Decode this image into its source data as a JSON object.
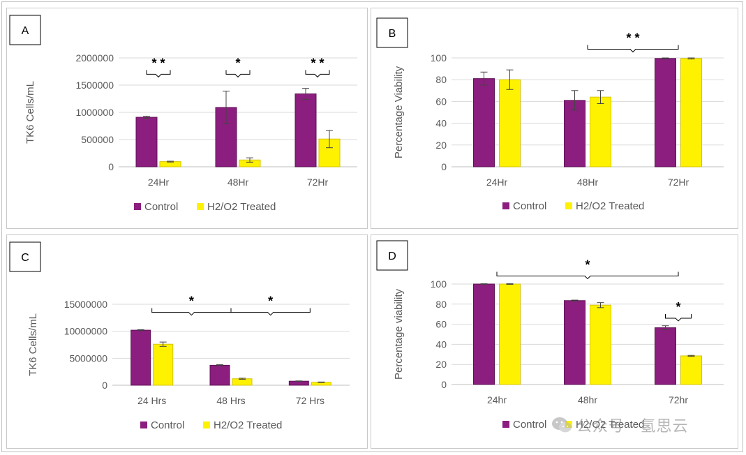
{
  "colors": {
    "control": "#8B1E7E",
    "treated": "#FFF200",
    "treated_stroke": "#D6C400",
    "grid": "#d9d9d9",
    "axis": "#bfbfbf"
  },
  "legend": {
    "control": "Control",
    "treated": "H2/O2 Treated"
  },
  "watermark": {
    "text": "公众号 · 氢思云"
  },
  "chart_data": [
    {
      "panel": "A",
      "type": "bar",
      "ylabel": "TK6 Cells/mL",
      "categories": [
        "24Hr",
        "48Hr",
        "72Hr"
      ],
      "ylim": [
        0,
        2000000
      ],
      "yticks": [
        0,
        500000,
        1000000,
        1500000,
        2000000
      ],
      "ytick_labels": [
        "0",
        "500000",
        "1000000",
        "1500000",
        "2000000"
      ],
      "series": [
        {
          "name": "Control",
          "values": [
            910000,
            1090000,
            1340000
          ],
          "errors": [
            20000,
            300000,
            100000
          ]
        },
        {
          "name": "H2/O2 Treated",
          "values": [
            95000,
            125000,
            510000
          ],
          "errors": [
            8000,
            40000,
            160000
          ]
        }
      ],
      "annotations": [
        {
          "type": "pair",
          "category": 0,
          "text": "* *",
          "y": 1700000
        },
        {
          "type": "pair",
          "category": 1,
          "text": "*",
          "y": 1700000
        },
        {
          "type": "pair",
          "category": 2,
          "text": "* *",
          "y": 1700000
        }
      ]
    },
    {
      "panel": "B",
      "type": "bar",
      "ylabel": "Percentage Viability",
      "categories": [
        "24Hr",
        "48Hr",
        "72Hr"
      ],
      "ylim": [
        0,
        100
      ],
      "yticks": [
        0,
        20,
        40,
        60,
        80,
        100
      ],
      "ytick_labels": [
        "0",
        "20",
        "40",
        "60",
        "80",
        "100"
      ],
      "series": [
        {
          "name": "Control",
          "values": [
            81,
            61,
            99.5
          ],
          "errors": [
            6,
            9,
            0.5
          ]
        },
        {
          "name": "H2/O2 Treated",
          "values": [
            80,
            64,
            99.5
          ],
          "errors": [
            9,
            6,
            0.5
          ]
        }
      ],
      "annotations": [
        {
          "type": "span",
          "from": 1,
          "to": 2,
          "text": "* *",
          "y": 108
        }
      ]
    },
    {
      "panel": "C",
      "type": "bar",
      "ylabel": "TK6  Cells/mL",
      "categories": [
        "24 Hrs",
        "48 Hrs",
        "72 Hrs"
      ],
      "ylim": [
        0,
        15000000
      ],
      "yticks": [
        0,
        5000000,
        10000000,
        15000000
      ],
      "ytick_labels": [
        "0",
        "5000000",
        "10000000",
        "15000000"
      ],
      "series": [
        {
          "name": "Control",
          "values": [
            10200000,
            3700000,
            750000
          ],
          "errors": [
            100000,
            100000,
            50000
          ]
        },
        {
          "name": "H2/O2 Treated",
          "values": [
            7600000,
            1200000,
            550000
          ],
          "errors": [
            400000,
            100000,
            50000
          ]
        }
      ],
      "annotations": [
        {
          "type": "span",
          "from": 0,
          "to": 1,
          "text": "*",
          "y": 13500000
        },
        {
          "type": "span",
          "from": 1,
          "to": 2,
          "text": "*",
          "y": 13500000
        }
      ]
    },
    {
      "panel": "D",
      "type": "bar",
      "ylabel": "Percentage viability",
      "categories": [
        "24hr",
        "48hr",
        "72hr"
      ],
      "ylim": [
        0,
        100
      ],
      "yticks": [
        0,
        20,
        40,
        60,
        80,
        100
      ],
      "ytick_labels": [
        "0",
        "20",
        "40",
        "60",
        "80",
        "100"
      ],
      "series": [
        {
          "name": "Control",
          "values": [
            100,
            83.5,
            56.5
          ],
          "errors": [
            0.3,
            0.5,
            2
          ]
        },
        {
          "name": "H2/O2 Treated",
          "values": [
            100,
            79,
            28.5
          ],
          "errors": [
            0.3,
            2.5,
            0.5
          ]
        }
      ],
      "annotations": [
        {
          "type": "span",
          "from": 0,
          "to": 2,
          "text": "*",
          "y": 108
        },
        {
          "type": "pair",
          "category": 2,
          "text": "*",
          "y": 66
        }
      ]
    }
  ]
}
